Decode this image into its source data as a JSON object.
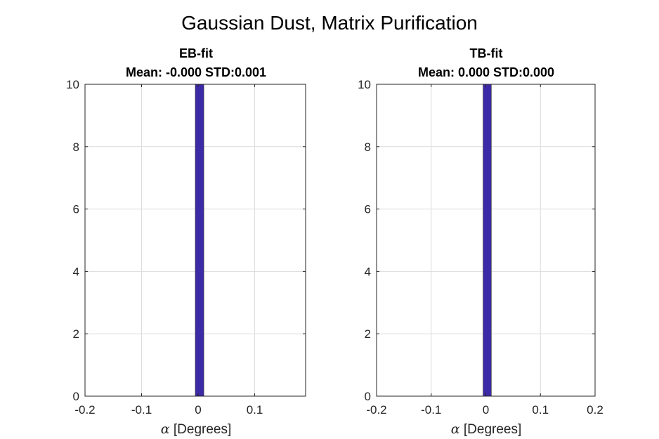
{
  "figure": {
    "title": "Gaussian Dust, Matrix Purification"
  },
  "chart_data": [
    {
      "type": "bar",
      "title_line1": "EB-fit",
      "title_line2": "Mean: -0.000 STD:0.001",
      "xlabel_symbol": "α",
      "xlabel_text": " [Degrees]",
      "ylabel": "",
      "xlim": [
        -0.2,
        0.19
      ],
      "ylim": [
        0,
        10
      ],
      "xticks": [
        -0.2,
        -0.1,
        0,
        0.1
      ],
      "xtick_labels": [
        "-0.2",
        "-0.1",
        "0",
        "0.1"
      ],
      "yticks": [
        0,
        2,
        4,
        6,
        8,
        10
      ],
      "ytick_labels": [
        "0",
        "2",
        "4",
        "6",
        "8",
        "10"
      ],
      "grid": true,
      "bar_color": "#3d2aa6",
      "bins": [
        {
          "x0": -0.005,
          "x1": 0.01,
          "value": 10
        }
      ]
    },
    {
      "type": "bar",
      "title_line1": "TB-fit",
      "title_line2": "Mean: 0.000 STD:0.000",
      "xlabel_symbol": "α",
      "xlabel_text": " [Degrees]",
      "ylabel": "",
      "xlim": [
        -0.2,
        0.2
      ],
      "ylim": [
        0,
        10
      ],
      "xticks": [
        -0.2,
        -0.1,
        0,
        0.1,
        0.2
      ],
      "xtick_labels": [
        "-0.2",
        "-0.1",
        "0",
        "0.1",
        "0.2"
      ],
      "yticks": [
        0,
        2,
        4,
        6,
        8,
        10
      ],
      "ytick_labels": [
        "0",
        "2",
        "4",
        "6",
        "8",
        "10"
      ],
      "grid": true,
      "bar_color": "#3d2aa6",
      "bins": [
        {
          "x0": -0.005,
          "x1": 0.01,
          "value": 10
        }
      ]
    }
  ]
}
